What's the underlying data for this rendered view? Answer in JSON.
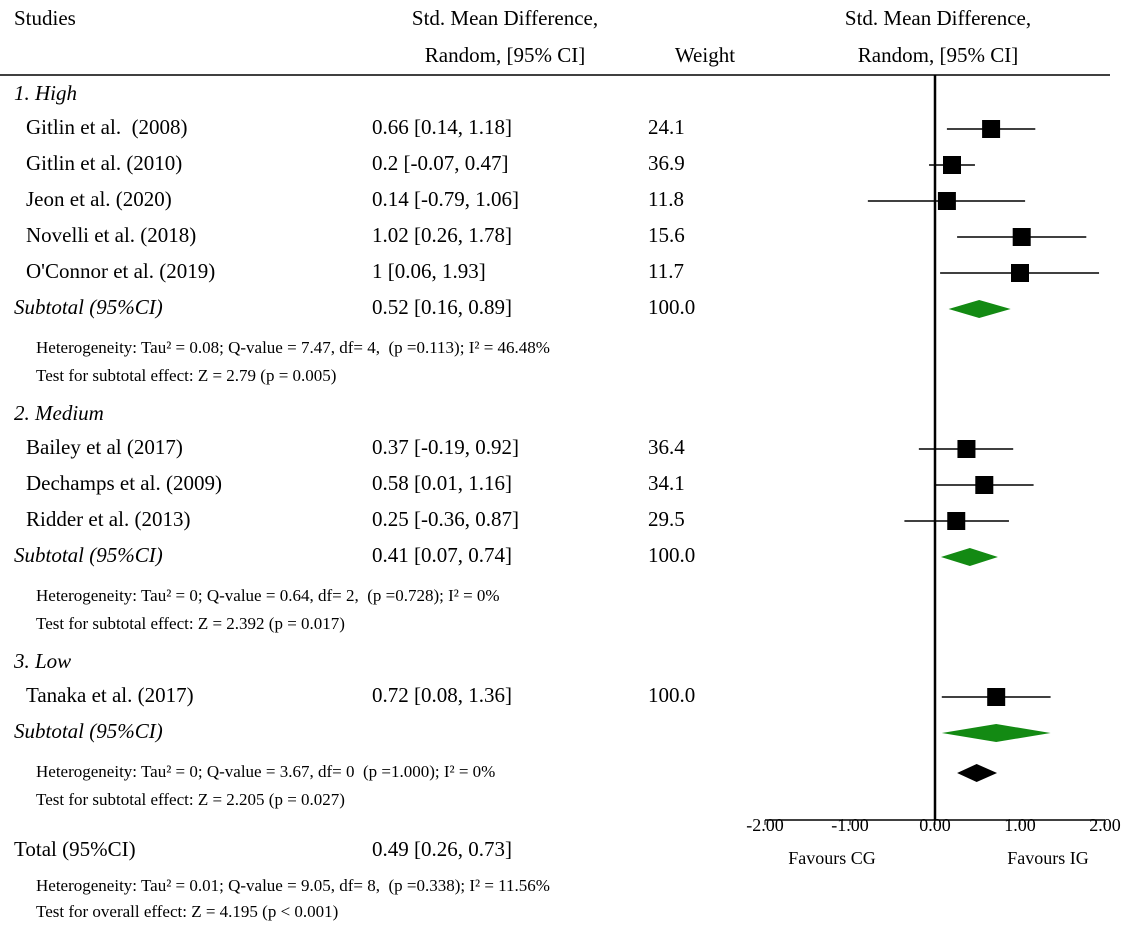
{
  "chart_data": {
    "type": "forest",
    "headers": {
      "study": "Studies",
      "effect": [
        "Std. Mean Difference,",
        "Random, [95% CI]"
      ],
      "weight": "Weight",
      "plot": [
        "Std. Mean Difference,",
        "Random, [95% CI]"
      ]
    },
    "groups": [
      {
        "name": "1. High",
        "studies": [
          {
            "name": "Gitlin et al.  (2008)",
            "estimate": 0.66,
            "ci": [
              0.14,
              1.18
            ],
            "ci_label": "0.66 [0.14, 1.18]",
            "weight": 24.1
          },
          {
            "name": "Gitlin et al. (2010)",
            "estimate": 0.2,
            "ci": [
              -0.07,
              0.47
            ],
            "ci_label": "0.2 [-0.07, 0.47]",
            "weight": 36.9
          },
          {
            "name": "Jeon et al. (2020)",
            "estimate": 0.14,
            "ci": [
              -0.79,
              1.06
            ],
            "ci_label": "0.14 [-0.79, 1.06]",
            "weight": 11.8
          },
          {
            "name": "Novelli et al. (2018)",
            "estimate": 1.02,
            "ci": [
              0.26,
              1.78
            ],
            "ci_label": "1.02 [0.26, 1.78]",
            "weight": 15.6
          },
          {
            "name": "O'Connor et al. (2019)",
            "estimate": 1,
            "ci": [
              0.06,
              1.93
            ],
            "ci_label": "1 [0.06, 1.93]",
            "weight": 11.7
          }
        ],
        "subtotal": {
          "name": "Subtotal (95%CI)",
          "estimate": 0.52,
          "ci": [
            0.16,
            0.89
          ],
          "ci_label": "0.52 [0.16, 0.89]",
          "weight": 100,
          "weight_label": "100.0"
        },
        "heterogeneity": "Heterogeneity: Tau² = 0.08; Q-value = 7.47, df= 4,  (p =0.113); I² = 46.48%",
        "test": "Test for subtotal effect: Z = 2.79 (p = 0.005)"
      },
      {
        "name": "2. Medium",
        "studies": [
          {
            "name": "Bailey et al (2017)",
            "estimate": 0.37,
            "ci": [
              -0.19,
              0.92
            ],
            "ci_label": "0.37 [-0.19, 0.92]",
            "weight": 36.4
          },
          {
            "name": "Dechamps et al. (2009)",
            "estimate": 0.58,
            "ci": [
              0.01,
              1.16
            ],
            "ci_label": "0.58 [0.01, 1.16]",
            "weight": 34.1
          },
          {
            "name": "Ridder et al. (2013)",
            "estimate": 0.25,
            "ci": [
              -0.36,
              0.87
            ],
            "ci_label": "0.25 [-0.36, 0.87]",
            "weight": 29.5
          }
        ],
        "subtotal": {
          "name": "Subtotal (95%CI)",
          "estimate": 0.41,
          "ci": [
            0.07,
            0.74
          ],
          "ci_label": "0.41 [0.07, 0.74]",
          "weight": 100,
          "weight_label": "100.0"
        },
        "heterogeneity": "Heterogeneity: Tau² = 0; Q-value = 0.64, df= 2,  (p =0.728); I² = 0%",
        "test": "Test for subtotal effect: Z = 2.392 (p = 0.017)"
      },
      {
        "name": "3. Low",
        "studies": [
          {
            "name": "Tanaka et al. (2017)",
            "estimate": 0.72,
            "ci": [
              0.08,
              1.36
            ],
            "ci_label": "0.72 [0.08, 1.36]",
            "weight": 100,
            "weight_label": "100.0"
          }
        ],
        "subtotal": {
          "name": "Subtotal (95%CI)",
          "estimate": 0.72,
          "ci": [
            0.08,
            1.36
          ]
        },
        "heterogeneity": "Heterogeneity: Tau² = 0; Q-value = 3.67, df= 0  (p =1.000); I² = 0%",
        "test": "Test for subtotal effect: Z = 2.205 (p = 0.027)"
      }
    ],
    "total": {
      "name": "Total (95%CI)",
      "estimate": 0.49,
      "ci": [
        0.26,
        0.73
      ],
      "ci_label": "0.49 [0.26, 0.73]",
      "heterogeneity": "Heterogeneity: Tau² = 0.01; Q-value = 9.05, df= 8,  (p =0.338); I² = 11.56%",
      "test": "Test for overall effect: Z = 4.195 (p < 0.001)"
    },
    "xlim": [
      -2,
      2
    ],
    "xticks": [
      {
        "value": -2,
        "label": "-2.00"
      },
      {
        "value": -1,
        "label": "-1.00"
      },
      {
        "value": 0,
        "label": "0.00"
      },
      {
        "value": 1,
        "label": "1.00"
      },
      {
        "value": 2,
        "label": "2.00"
      }
    ],
    "xlabels": [
      "Favours CG",
      "Favours IG"
    ],
    "marker_color": "#000000",
    "subtotal_color": "#138a13",
    "total_color": "#000000"
  }
}
